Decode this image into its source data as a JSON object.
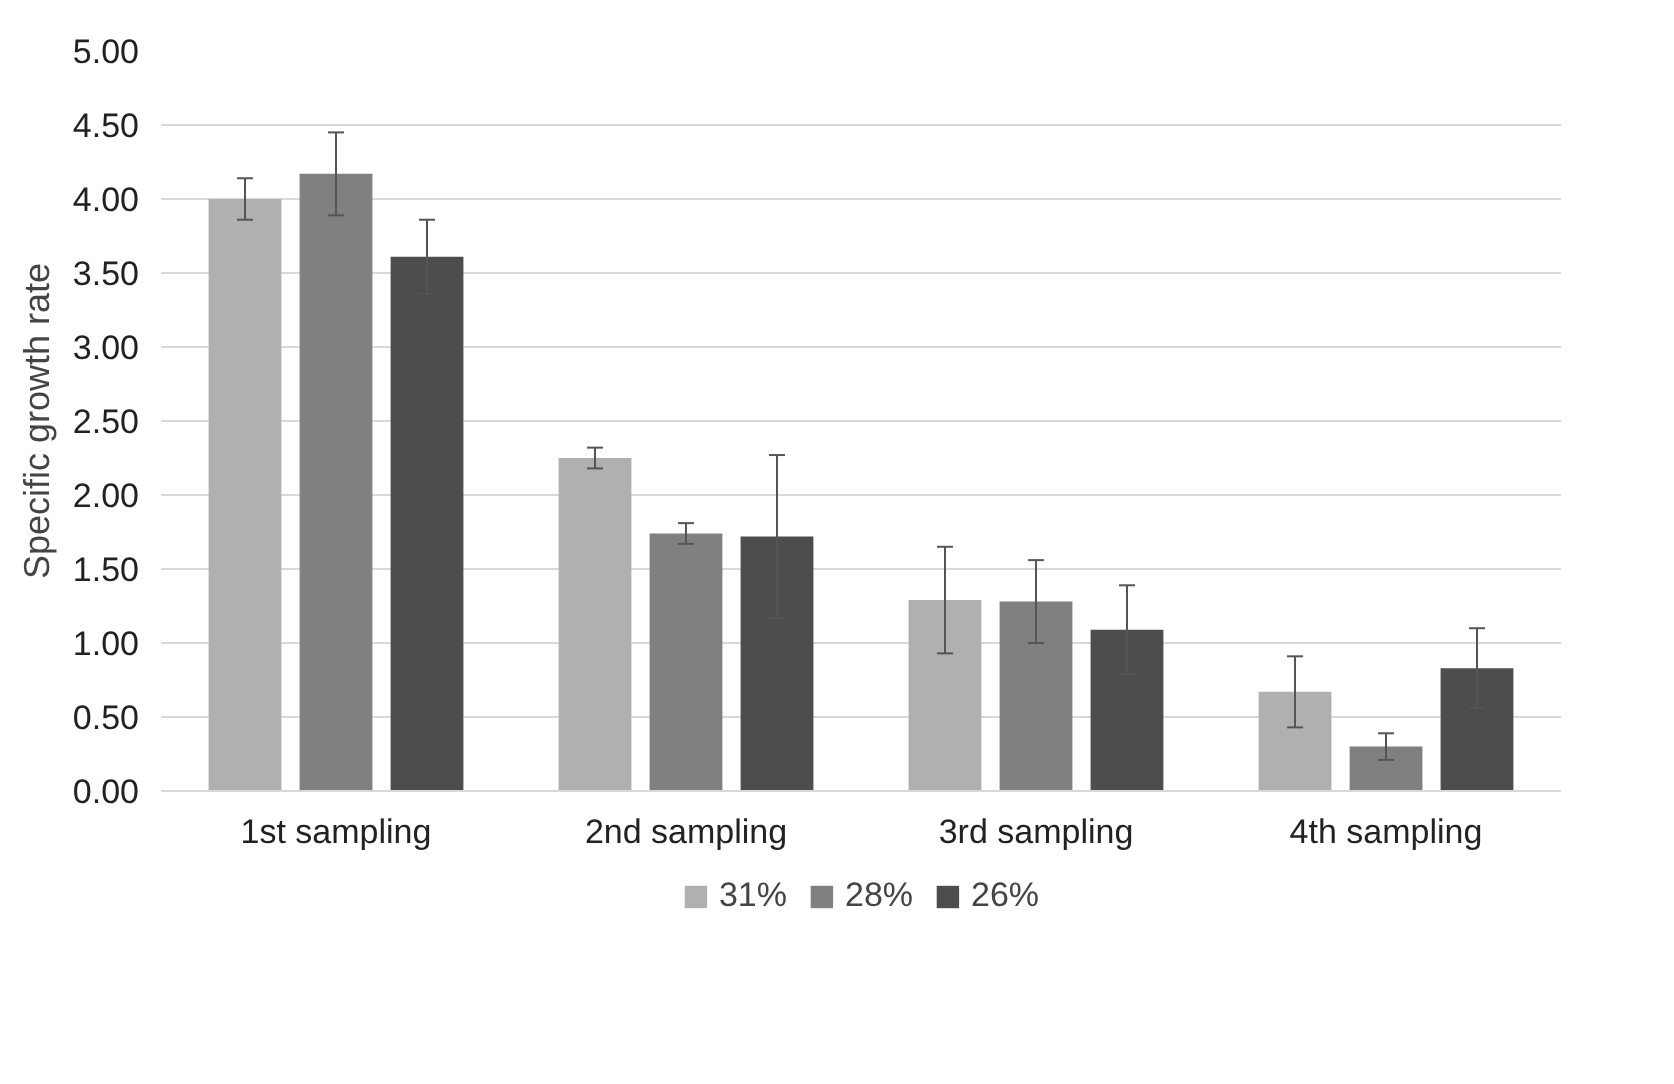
{
  "chart_data": {
    "type": "bar",
    "ylabel": "Specific growth rate",
    "categories": [
      "1st sampling",
      "2nd sampling",
      "3rd sampling",
      "4th sampling"
    ],
    "series": [
      {
        "name": "31%",
        "color": "#b0b0b0",
        "values": [
          4.0,
          2.25,
          1.29,
          0.67
        ],
        "errors": [
          0.14,
          0.07,
          0.36,
          0.24
        ]
      },
      {
        "name": "28%",
        "color": "#808080",
        "values": [
          4.17,
          1.74,
          1.28,
          0.3
        ],
        "errors": [
          0.28,
          0.07,
          0.28,
          0.09
        ]
      },
      {
        "name": "26%",
        "color": "#4d4d4d",
        "values": [
          3.61,
          1.72,
          1.09,
          0.83
        ],
        "errors": [
          0.25,
          0.55,
          0.3,
          0.27
        ]
      }
    ],
    "ylim": [
      0,
      5
    ],
    "yticks": [
      {
        "value": 0,
        "label": "0.00"
      },
      {
        "value": 0.5,
        "label": "0.50"
      },
      {
        "value": 1,
        "label": "1.00"
      },
      {
        "value": 1.5,
        "label": "1.50"
      },
      {
        "value": 2,
        "label": "2.00"
      },
      {
        "value": 2.5,
        "label": "2.50"
      },
      {
        "value": 3,
        "label": "3.00"
      },
      {
        "value": 3.5,
        "label": "3.50"
      },
      {
        "value": 4,
        "label": "4.00"
      },
      {
        "value": 4.5,
        "label": "4.50"
      },
      {
        "value": 5,
        "label": "5.00"
      }
    ],
    "grid": "y",
    "legend": "bottom"
  }
}
